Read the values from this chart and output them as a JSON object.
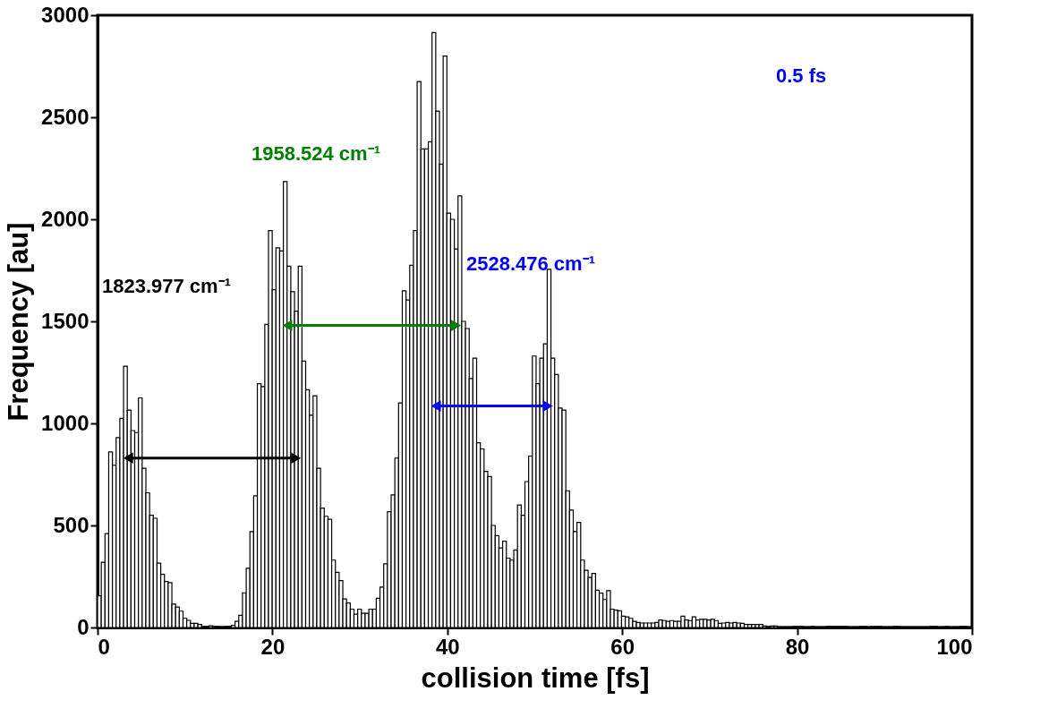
{
  "chart_data": {
    "type": "histogram",
    "xlabel": "collision time [fs]",
    "ylabel": "Frequency [au]",
    "xlim": [
      0,
      100
    ],
    "xticks": [
      0,
      20,
      40,
      60,
      80,
      100
    ],
    "ylim": [
      0,
      3000
    ],
    "yticks": [
      0,
      500,
      1000,
      1500,
      2000,
      2500,
      3000
    ],
    "grid": false,
    "color": "#ffffff",
    "bins": [
      0,
      0.425,
      0.85,
      1.275,
      1.7,
      2.125,
      2.55,
      2.975,
      3.4,
      3.825,
      4.25,
      4.675,
      5.1,
      5.525,
      5.95,
      6.375,
      6.8,
      7.225,
      7.65,
      8.075,
      8.5,
      8.925,
      9.35,
      9.775,
      10.2,
      10.625,
      11.05,
      11.475,
      11.9,
      12.325,
      12.75,
      13.175,
      13.6,
      14.025,
      14.45,
      14.875,
      15.3,
      15.725,
      16.15,
      16.575,
      17,
      17.425,
      17.85,
      18.275,
      18.7,
      19.125,
      19.55,
      19.975,
      20.4,
      20.825,
      21.25,
      21.675,
      22.1,
      22.525,
      22.95,
      23.375,
      23.8,
      24.225,
      24.65,
      25.075,
      25.5,
      25.925,
      26.35,
      26.775,
      27.2,
      27.625,
      28.05,
      28.475,
      28.9,
      29.325,
      29.75,
      30.175,
      30.6,
      31.025,
      31.45,
      31.875,
      32.3,
      32.725,
      33.15,
      33.575,
      34,
      34.425,
      34.85,
      35.275,
      35.7,
      36.125,
      36.55,
      36.975,
      37.4,
      37.825,
      38.25,
      38.675,
      39.1,
      39.525,
      39.95,
      40.375,
      40.8,
      41.225,
      41.65,
      42.075,
      42.5,
      42.925,
      43.35,
      43.775,
      44.2,
      44.625,
      45.05,
      45.475,
      45.9,
      46.325,
      46.75,
      47.175,
      47.6,
      48.025,
      48.45,
      48.875,
      49.3,
      49.725,
      50.15,
      50.575,
      51,
      51.425,
      51.85,
      52.275,
      52.7,
      53.125,
      53.55,
      53.975,
      54.4,
      54.825,
      55.25,
      55.675,
      56.1,
      56.525,
      56.95,
      57.375,
      57.8,
      58.225,
      58.65,
      59.075,
      59.5,
      59.925,
      60.35,
      60.775,
      61.2,
      61.625,
      62.05,
      62.475,
      62.9,
      63.325,
      63.75,
      64.175,
      64.6,
      65.025,
      65.45,
      65.875,
      66.3,
      66.725,
      67.15,
      67.575,
      68,
      68.425,
      68.85,
      69.275,
      69.7,
      70.125,
      70.55,
      70.975,
      71.4,
      71.825,
      72.25,
      72.675,
      73.1,
      73.525,
      73.95,
      74.375,
      74.8,
      75.225,
      75.65,
      76.075,
      76.5,
      76.925,
      77.35,
      77.775,
      78.2,
      78.625,
      79.05,
      79.475,
      79.9,
      80.325,
      80.75,
      81.175,
      81.6,
      82.025,
      82.45,
      82.875,
      83.3,
      83.725,
      84.15,
      84.575,
      85,
      85.425,
      85.85,
      86.275,
      86.7,
      87.125,
      87.55,
      87.975,
      88.4,
      88.825,
      89.25,
      89.675,
      90.1,
      90.525,
      90.95,
      91.375,
      91.8,
      92.225,
      92.65,
      93.075,
      93.5,
      93.925,
      94.35,
      94.775,
      95.2,
      95.625,
      96.05,
      96.475,
      96.9,
      97.325,
      97.75,
      98.175,
      98.6,
      99.025,
      99.45,
      99.875
    ],
    "values": [
      155,
      320,
      460,
      860,
      795,
      930,
      1025,
      1280,
      1065,
      965,
      955,
      1125,
      780,
      660,
      550,
      535,
      315,
      260,
      225,
      220,
      115,
      100,
      80,
      45,
      35,
      20,
      20,
      15,
      5,
      5,
      8,
      5,
      5,
      3,
      5,
      5,
      10,
      30,
      60,
      170,
      290,
      470,
      645,
      1195,
      1180,
      1485,
      1945,
      1655,
      1860,
      1845,
      2185,
      1770,
      1645,
      1550,
      1770,
      1305,
      1165,
      1040,
      1135,
      780,
      585,
      545,
      530,
      330,
      270,
      230,
      140,
      120,
      90,
      65,
      90,
      70,
      70,
      90,
      90,
      143,
      198,
      312,
      567,
      650,
      830,
      1100,
      1650,
      1605,
      1775,
      1945,
      2675,
      2345,
      2345,
      2380,
      2915,
      2530,
      2270,
      2800,
      2030,
      2000,
      1855,
      2115,
      1500,
      1465,
      1220,
      1320,
      905,
      875,
      765,
      740,
      500,
      450,
      390,
      423,
      340,
      330,
      380,
      600,
      550,
      715,
      840,
      1330,
      1195,
      1320,
      1390,
      1755,
      1320,
      1240,
      1075,
      1065,
      670,
      575,
      470,
      515,
      330,
      280,
      245,
      265,
      183,
      168,
      137,
      180,
      90,
      85,
      82,
      55,
      52,
      45,
      30,
      25,
      22,
      22,
      22,
      22,
      25,
      37,
      34,
      30,
      34,
      30,
      30,
      55,
      37,
      34,
      52,
      37,
      40,
      40,
      37,
      40,
      34,
      20,
      22,
      25,
      22,
      25,
      22,
      20,
      15,
      15,
      15,
      15,
      15,
      7,
      5,
      7,
      7,
      3,
      3,
      3,
      3,
      5,
      5,
      5,
      3,
      3,
      5,
      3,
      3,
      3,
      5,
      5,
      5,
      5,
      5,
      5,
      3,
      3,
      3,
      5,
      5,
      3,
      5,
      5,
      5,
      3,
      3,
      3,
      5,
      5,
      3,
      3,
      3,
      3,
      3,
      3,
      3,
      3,
      5,
      5,
      3,
      3,
      5,
      3,
      3,
      3,
      5,
      5,
      3
    ],
    "series": [
      {
        "type": "line",
        "color": "#000000",
        "x": [
          3.5,
          22.7
        ],
        "values": [
          830,
          830
        ]
      },
      {
        "type": "line",
        "color": "#008000",
        "x": [
          21.7,
          41
        ],
        "values": [
          1480,
          1480
        ]
      },
      {
        "type": "line",
        "color": "#0000ff",
        "x": [
          38.7,
          51.5
        ],
        "values": [
          1085,
          1085
        ]
      }
    ],
    "marker": "triangle",
    "line_style": "solid",
    "annotations": [
      "1823.977 cm⁻¹",
      "1958.524 cm⁻¹",
      "2528.476 cm⁻¹",
      "0.5 fs"
    ]
  }
}
